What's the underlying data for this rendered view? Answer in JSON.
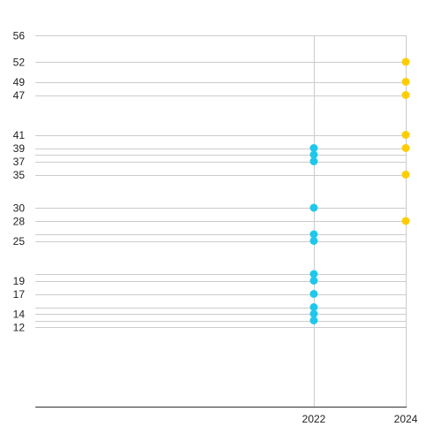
{
  "chart_data": {
    "type": "scatter",
    "title": "",
    "xlabel": "",
    "ylabel": "",
    "x_ticks": [
      "2022",
      "2024"
    ],
    "y_ticks": [
      56,
      52,
      49,
      47,
      41,
      39,
      37,
      35,
      30,
      28,
      25,
      19,
      17,
      14,
      12
    ],
    "ylim": [
      0,
      56
    ],
    "grid": true,
    "legend": "none",
    "series": [
      {
        "color": "#1ec8eb",
        "points": [
          {
            "x": "2022",
            "y": 39
          },
          {
            "x": "2022",
            "y": 38
          },
          {
            "x": "2022",
            "y": 37
          },
          {
            "x": "2022",
            "y": 30
          },
          {
            "x": "2022",
            "y": 26
          },
          {
            "x": "2022",
            "y": 25
          },
          {
            "x": "2022",
            "y": 20
          },
          {
            "x": "2022",
            "y": 19
          },
          {
            "x": "2022",
            "y": 17
          },
          {
            "x": "2022",
            "y": 15
          },
          {
            "x": "2022",
            "y": 14
          },
          {
            "x": "2022",
            "y": 13
          }
        ]
      },
      {
        "color": "#ffcd00",
        "points": [
          {
            "x": "2024",
            "y": 52
          },
          {
            "x": "2024",
            "y": 49
          },
          {
            "x": "2024",
            "y": 47
          },
          {
            "x": "2024",
            "y": 41
          },
          {
            "x": "2024",
            "y": 39
          },
          {
            "x": "2024",
            "y": 35
          },
          {
            "x": "2024",
            "y": 28
          }
        ]
      }
    ]
  }
}
